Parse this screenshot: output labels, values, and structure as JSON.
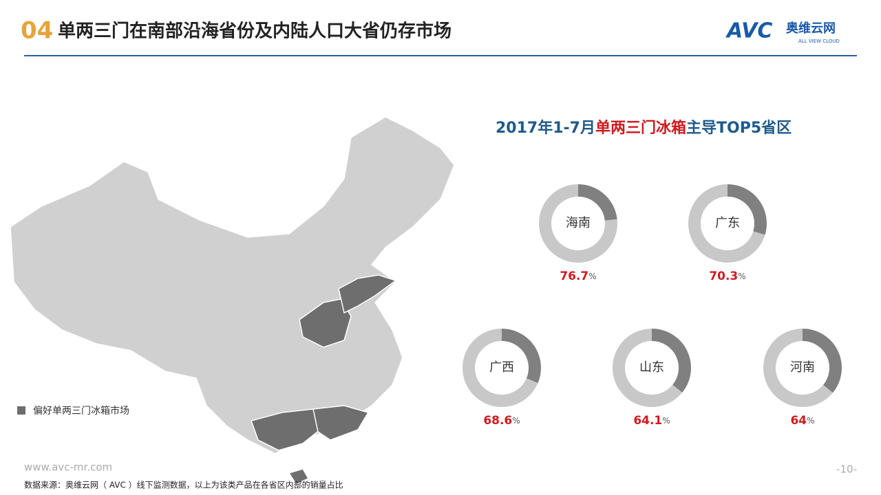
{
  "header": {
    "number": "04",
    "title": "单两三门在南部沿海省份及内陆人口大省仍存市场",
    "logo": "AVC",
    "logo_cn": "奥维云网",
    "logo_en": "ALL VIEW CLOUD"
  },
  "chart_data": {
    "type": "donut",
    "title": [
      "2017年1-7月",
      "单两三门冰箱",
      "主导TOP5省区"
    ],
    "categories": [
      "海南",
      "广东",
      "广西",
      "山东",
      "河南"
    ],
    "values": [
      76.7,
      70.3,
      68.6,
      64.1,
      64.0
    ],
    "unit": "%",
    "colors": [
      "#c8c8c8",
      "#808080"
    ]
  },
  "map": {
    "legend": "偏好单两三门冰箱市场"
  },
  "footer": {
    "url": "www.avc-mr.com",
    "source": "数据来源：奥维云网（  AVC  ）线下监测数据，以上为该类产品在各省区内部的销量占比",
    "page": "-10-"
  }
}
